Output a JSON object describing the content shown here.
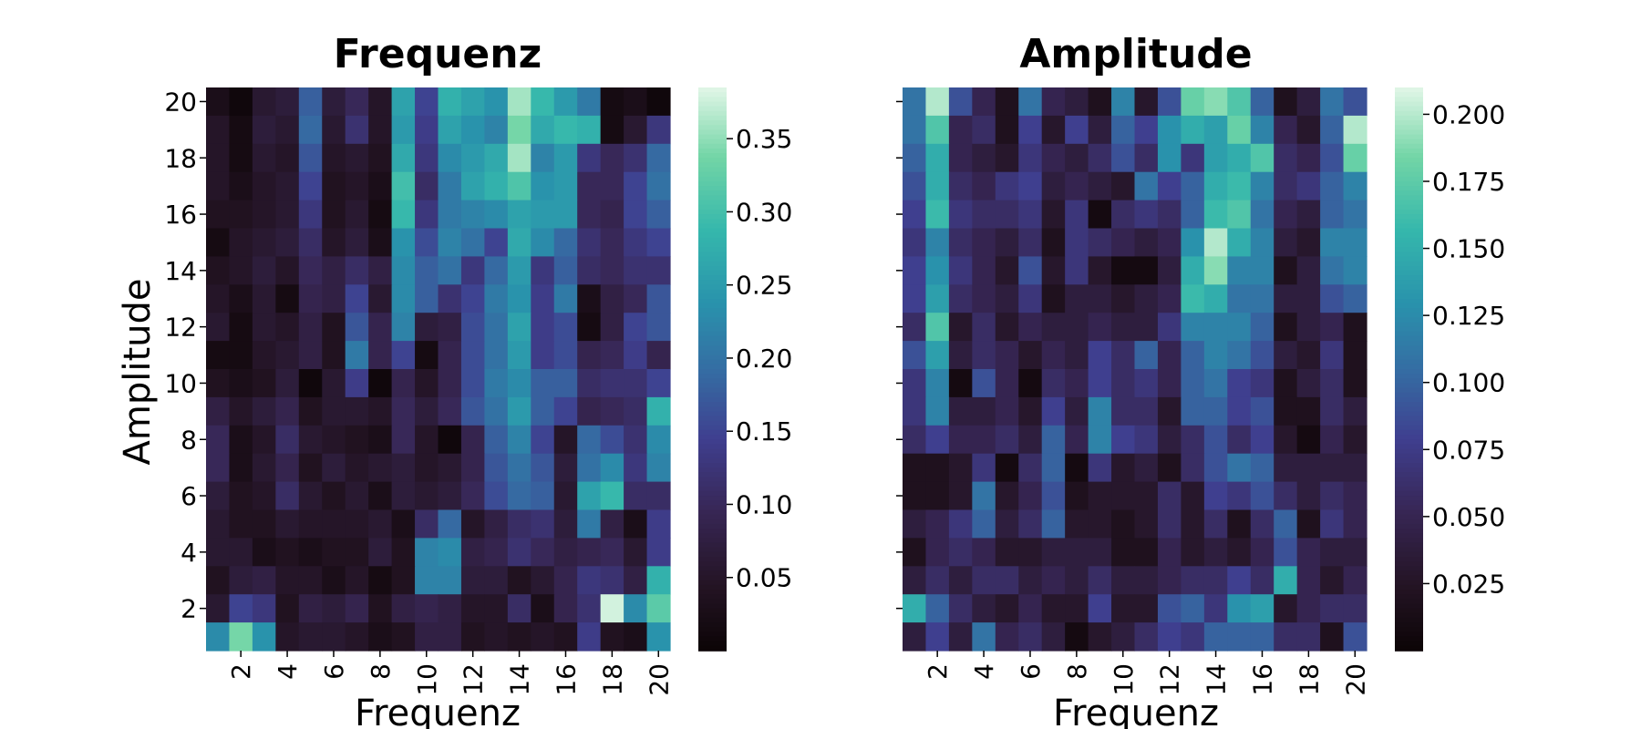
{
  "chart_data": [
    {
      "type": "heatmap",
      "title": "Frequenz",
      "xlabel": "Frequenz",
      "ylabel": "Amplitude",
      "x_ticks": [
        "2",
        "4",
        "6",
        "8",
        "10",
        "12",
        "14",
        "16",
        "18",
        "20"
      ],
      "y_ticks": [
        "2",
        "4",
        "6",
        "8",
        "10",
        "12",
        "14",
        "16",
        "18",
        "20"
      ],
      "colorbar_ticks": [
        "0.05",
        "0.10",
        "0.15",
        "0.20",
        "0.25",
        "0.30",
        "0.35"
      ],
      "colorbar_range": [
        0.0,
        0.385
      ],
      "colormap": "mako",
      "rows_top_to_bottom": [
        [
          0.03,
          0.01,
          0.06,
          0.07,
          0.18,
          0.07,
          0.1,
          0.05,
          0.26,
          0.15,
          0.28,
          0.26,
          0.24,
          0.36,
          0.29,
          0.25,
          0.21,
          0.02,
          0.03,
          0.01
        ],
        [
          0.05,
          0.02,
          0.07,
          0.06,
          0.19,
          0.06,
          0.12,
          0.05,
          0.25,
          0.14,
          0.26,
          0.24,
          0.22,
          0.34,
          0.27,
          0.29,
          0.28,
          0.02,
          0.06,
          0.13
        ],
        [
          0.05,
          0.02,
          0.06,
          0.05,
          0.17,
          0.05,
          0.06,
          0.04,
          0.27,
          0.13,
          0.23,
          0.25,
          0.27,
          0.36,
          0.22,
          0.25,
          0.13,
          0.1,
          0.12,
          0.19
        ],
        [
          0.05,
          0.03,
          0.05,
          0.06,
          0.15,
          0.04,
          0.05,
          0.03,
          0.3,
          0.11,
          0.21,
          0.26,
          0.28,
          0.31,
          0.24,
          0.25,
          0.1,
          0.1,
          0.15,
          0.2
        ],
        [
          0.04,
          0.04,
          0.05,
          0.06,
          0.13,
          0.04,
          0.06,
          0.02,
          0.29,
          0.13,
          0.21,
          0.22,
          0.23,
          0.26,
          0.25,
          0.25,
          0.1,
          0.09,
          0.15,
          0.18
        ],
        [
          0.02,
          0.05,
          0.06,
          0.07,
          0.11,
          0.05,
          0.07,
          0.03,
          0.24,
          0.16,
          0.22,
          0.2,
          0.15,
          0.27,
          0.23,
          0.19,
          0.12,
          0.1,
          0.13,
          0.15
        ],
        [
          0.04,
          0.05,
          0.07,
          0.05,
          0.1,
          0.08,
          0.11,
          0.08,
          0.23,
          0.18,
          0.2,
          0.13,
          0.19,
          0.25,
          0.13,
          0.18,
          0.11,
          0.1,
          0.12,
          0.12
        ],
        [
          0.05,
          0.03,
          0.06,
          0.02,
          0.09,
          0.08,
          0.15,
          0.06,
          0.23,
          0.18,
          0.12,
          0.15,
          0.21,
          0.24,
          0.14,
          0.21,
          0.03,
          0.08,
          0.1,
          0.17
        ],
        [
          0.06,
          0.02,
          0.06,
          0.05,
          0.08,
          0.04,
          0.17,
          0.09,
          0.22,
          0.07,
          0.08,
          0.16,
          0.2,
          0.26,
          0.14,
          0.16,
          0.02,
          0.08,
          0.15,
          0.17
        ],
        [
          0.02,
          0.02,
          0.05,
          0.06,
          0.08,
          0.04,
          0.21,
          0.09,
          0.15,
          0.02,
          0.09,
          0.16,
          0.2,
          0.25,
          0.14,
          0.16,
          0.09,
          0.1,
          0.14,
          0.09
        ],
        [
          0.04,
          0.03,
          0.04,
          0.07,
          0.01,
          0.06,
          0.14,
          0.01,
          0.09,
          0.05,
          0.09,
          0.16,
          0.21,
          0.23,
          0.18,
          0.18,
          0.11,
          0.12,
          0.12,
          0.15
        ],
        [
          0.08,
          0.05,
          0.07,
          0.09,
          0.04,
          0.06,
          0.06,
          0.05,
          0.1,
          0.07,
          0.1,
          0.17,
          0.2,
          0.25,
          0.18,
          0.15,
          0.09,
          0.1,
          0.11,
          0.28
        ],
        [
          0.1,
          0.03,
          0.05,
          0.11,
          0.06,
          0.05,
          0.04,
          0.03,
          0.1,
          0.05,
          0.01,
          0.09,
          0.18,
          0.22,
          0.15,
          0.05,
          0.19,
          0.16,
          0.12,
          0.23
        ],
        [
          0.1,
          0.03,
          0.06,
          0.09,
          0.04,
          0.07,
          0.05,
          0.06,
          0.07,
          0.05,
          0.06,
          0.09,
          0.17,
          0.2,
          0.17,
          0.07,
          0.2,
          0.23,
          0.13,
          0.22
        ],
        [
          0.07,
          0.04,
          0.05,
          0.11,
          0.06,
          0.04,
          0.06,
          0.03,
          0.07,
          0.06,
          0.07,
          0.1,
          0.16,
          0.19,
          0.18,
          0.06,
          0.26,
          0.29,
          0.11,
          0.11
        ],
        [
          0.06,
          0.04,
          0.04,
          0.06,
          0.05,
          0.05,
          0.05,
          0.06,
          0.03,
          0.11,
          0.19,
          0.05,
          0.08,
          0.11,
          0.12,
          0.07,
          0.21,
          0.08,
          0.03,
          0.14
        ],
        [
          0.06,
          0.06,
          0.03,
          0.04,
          0.03,
          0.04,
          0.04,
          0.07,
          0.04,
          0.22,
          0.23,
          0.08,
          0.09,
          0.12,
          0.1,
          0.08,
          0.09,
          0.1,
          0.06,
          0.14
        ],
        [
          0.04,
          0.07,
          0.08,
          0.05,
          0.05,
          0.03,
          0.05,
          0.02,
          0.04,
          0.22,
          0.22,
          0.07,
          0.07,
          0.04,
          0.06,
          0.09,
          0.13,
          0.12,
          0.08,
          0.28
        ],
        [
          0.06,
          0.15,
          0.13,
          0.04,
          0.08,
          0.07,
          0.09,
          0.04,
          0.08,
          0.09,
          0.08,
          0.05,
          0.05,
          0.11,
          0.03,
          0.09,
          0.12,
          0.38,
          0.23,
          0.32
        ],
        [
          0.23,
          0.34,
          0.24,
          0.05,
          0.06,
          0.06,
          0.05,
          0.03,
          0.04,
          0.08,
          0.08,
          0.04,
          0.05,
          0.04,
          0.05,
          0.04,
          0.14,
          0.04,
          0.03,
          0.24
        ]
      ]
    },
    {
      "type": "heatmap",
      "title": "Amplitude",
      "xlabel": "Frequenz",
      "ylabel": "",
      "x_ticks": [
        "2",
        "4",
        "6",
        "8",
        "10",
        "12",
        "14",
        "16",
        "18",
        "20"
      ],
      "y_ticks": [],
      "colorbar_ticks": [
        "0.025",
        "0.050",
        "0.075",
        "0.100",
        "0.125",
        "0.150",
        "0.175",
        "0.200"
      ],
      "colorbar_range": [
        0.0,
        0.21
      ],
      "colormap": "mako",
      "rows_top_to_bottom": [
        [
          0.11,
          0.2,
          0.09,
          0.05,
          0.02,
          0.11,
          0.05,
          0.04,
          0.02,
          0.12,
          0.03,
          0.09,
          0.18,
          0.19,
          0.17,
          0.1,
          0.02,
          0.04,
          0.11,
          0.09
        ],
        [
          0.11,
          0.17,
          0.05,
          0.06,
          0.02,
          0.08,
          0.03,
          0.08,
          0.04,
          0.1,
          0.08,
          0.13,
          0.15,
          0.14,
          0.18,
          0.12,
          0.05,
          0.03,
          0.1,
          0.2
        ],
        [
          0.1,
          0.15,
          0.05,
          0.04,
          0.03,
          0.07,
          0.05,
          0.04,
          0.06,
          0.09,
          0.06,
          0.13,
          0.07,
          0.14,
          0.15,
          0.17,
          0.06,
          0.05,
          0.09,
          0.18
        ],
        [
          0.09,
          0.15,
          0.06,
          0.05,
          0.07,
          0.08,
          0.04,
          0.05,
          0.04,
          0.03,
          0.11,
          0.08,
          0.1,
          0.15,
          0.16,
          0.12,
          0.06,
          0.07,
          0.1,
          0.12
        ],
        [
          0.08,
          0.16,
          0.07,
          0.06,
          0.06,
          0.07,
          0.03,
          0.07,
          0.01,
          0.06,
          0.07,
          0.06,
          0.1,
          0.16,
          0.17,
          0.11,
          0.05,
          0.04,
          0.1,
          0.11
        ],
        [
          0.07,
          0.12,
          0.06,
          0.05,
          0.04,
          0.06,
          0.02,
          0.07,
          0.06,
          0.05,
          0.04,
          0.05,
          0.13,
          0.2,
          0.15,
          0.12,
          0.04,
          0.03,
          0.12,
          0.12
        ],
        [
          0.08,
          0.13,
          0.07,
          0.05,
          0.03,
          0.09,
          0.03,
          0.07,
          0.03,
          0.01,
          0.01,
          0.04,
          0.15,
          0.19,
          0.12,
          0.12,
          0.02,
          0.04,
          0.11,
          0.12
        ],
        [
          0.08,
          0.14,
          0.06,
          0.05,
          0.04,
          0.07,
          0.02,
          0.04,
          0.04,
          0.03,
          0.04,
          0.05,
          0.16,
          0.15,
          0.11,
          0.11,
          0.04,
          0.04,
          0.09,
          0.1
        ],
        [
          0.06,
          0.17,
          0.03,
          0.06,
          0.03,
          0.05,
          0.04,
          0.04,
          0.05,
          0.04,
          0.04,
          0.07,
          0.12,
          0.12,
          0.12,
          0.1,
          0.02,
          0.04,
          0.05,
          0.02
        ],
        [
          0.09,
          0.14,
          0.04,
          0.06,
          0.05,
          0.03,
          0.05,
          0.04,
          0.08,
          0.06,
          0.1,
          0.05,
          0.1,
          0.12,
          0.11,
          0.09,
          0.04,
          0.03,
          0.07,
          0.02
        ],
        [
          0.07,
          0.12,
          0.01,
          0.09,
          0.05,
          0.01,
          0.06,
          0.05,
          0.08,
          0.06,
          0.07,
          0.05,
          0.1,
          0.11,
          0.08,
          0.07,
          0.02,
          0.04,
          0.06,
          0.02
        ],
        [
          0.07,
          0.12,
          0.04,
          0.04,
          0.05,
          0.03,
          0.08,
          0.04,
          0.12,
          0.06,
          0.06,
          0.03,
          0.1,
          0.1,
          0.08,
          0.09,
          0.02,
          0.02,
          0.06,
          0.04
        ],
        [
          0.06,
          0.08,
          0.05,
          0.05,
          0.06,
          0.04,
          0.1,
          0.05,
          0.12,
          0.08,
          0.07,
          0.04,
          0.06,
          0.09,
          0.06,
          0.08,
          0.03,
          0.01,
          0.05,
          0.03
        ],
        [
          0.02,
          0.02,
          0.03,
          0.07,
          0.01,
          0.06,
          0.1,
          0.01,
          0.07,
          0.03,
          0.04,
          0.02,
          0.06,
          0.09,
          0.11,
          0.1,
          0.04,
          0.04,
          0.04,
          0.04
        ],
        [
          0.02,
          0.02,
          0.03,
          0.11,
          0.03,
          0.05,
          0.09,
          0.02,
          0.03,
          0.03,
          0.03,
          0.06,
          0.03,
          0.08,
          0.07,
          0.09,
          0.06,
          0.04,
          0.06,
          0.05
        ],
        [
          0.04,
          0.05,
          0.07,
          0.1,
          0.04,
          0.06,
          0.1,
          0.03,
          0.03,
          0.02,
          0.03,
          0.06,
          0.03,
          0.06,
          0.02,
          0.06,
          0.1,
          0.02,
          0.07,
          0.05
        ],
        [
          0.02,
          0.05,
          0.06,
          0.05,
          0.03,
          0.03,
          0.04,
          0.04,
          0.04,
          0.02,
          0.02,
          0.05,
          0.03,
          0.04,
          0.03,
          0.05,
          0.09,
          0.05,
          0.04,
          0.04
        ],
        [
          0.04,
          0.06,
          0.04,
          0.06,
          0.06,
          0.04,
          0.05,
          0.04,
          0.06,
          0.04,
          0.04,
          0.05,
          0.06,
          0.06,
          0.08,
          0.06,
          0.15,
          0.05,
          0.03,
          0.05
        ],
        [
          0.15,
          0.1,
          0.06,
          0.04,
          0.03,
          0.05,
          0.03,
          0.03,
          0.08,
          0.03,
          0.03,
          0.09,
          0.1,
          0.07,
          0.13,
          0.14,
          0.03,
          0.05,
          0.06,
          0.06
        ],
        [
          0.04,
          0.08,
          0.04,
          0.11,
          0.05,
          0.06,
          0.04,
          0.01,
          0.03,
          0.04,
          0.06,
          0.08,
          0.07,
          0.1,
          0.1,
          0.1,
          0.06,
          0.06,
          0.02,
          0.09
        ]
      ]
    }
  ]
}
